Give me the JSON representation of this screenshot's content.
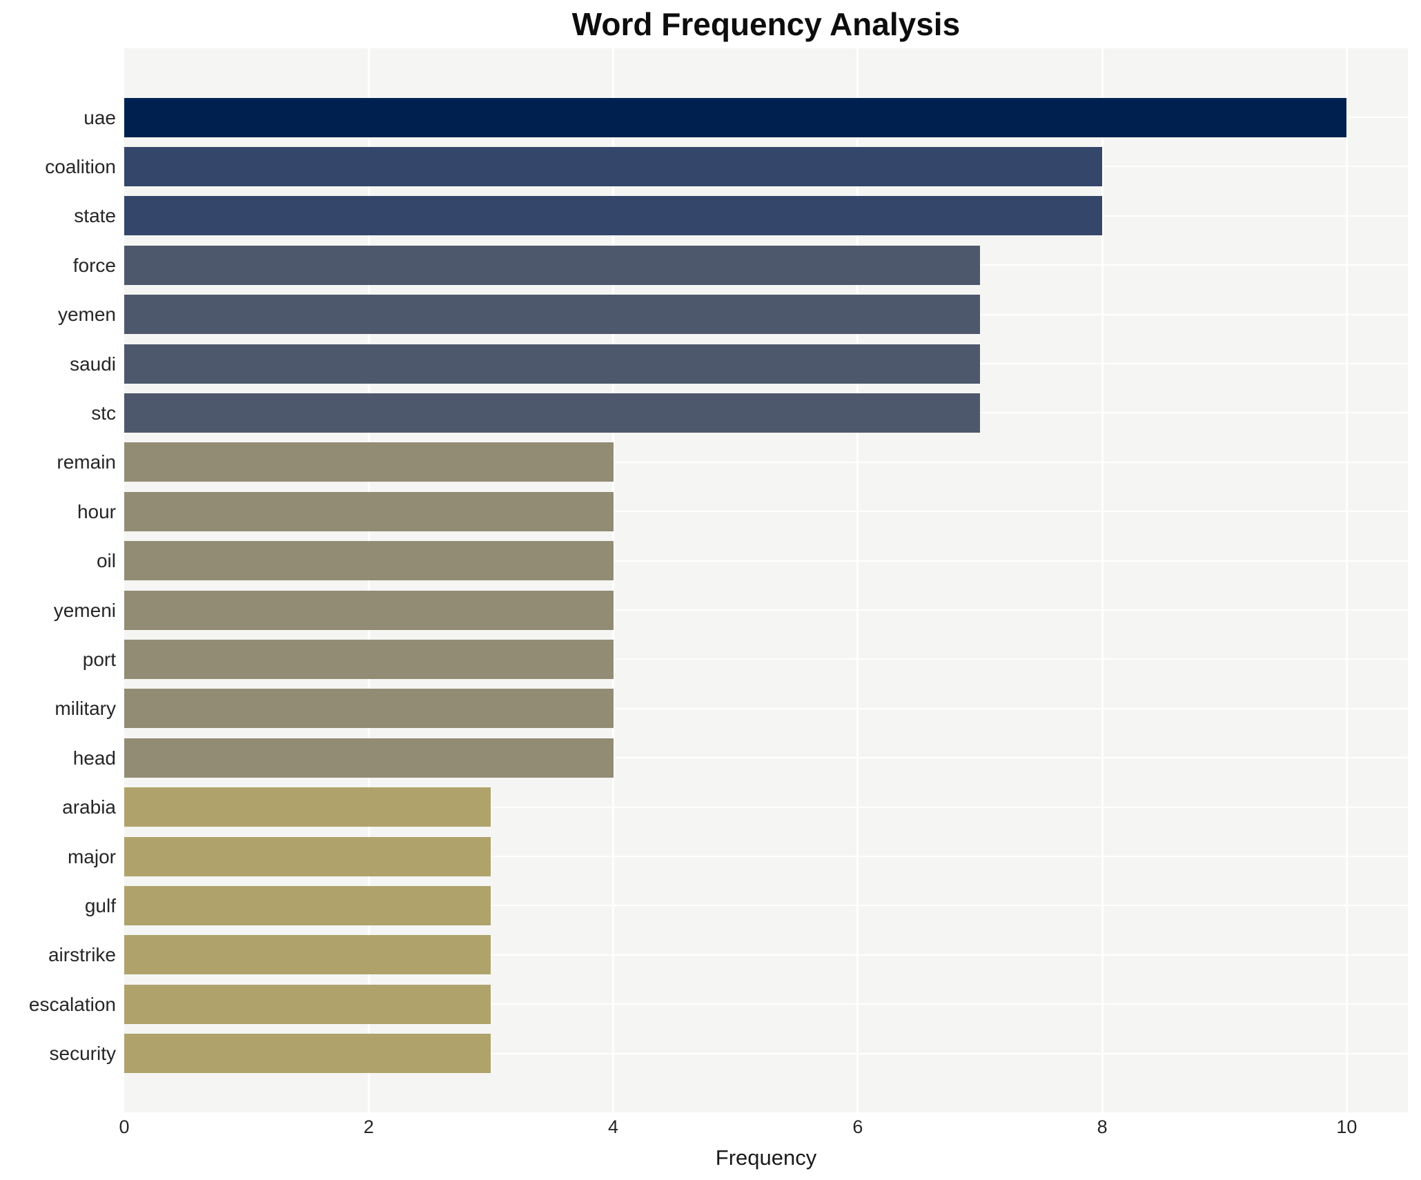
{
  "chart_data": {
    "type": "bar",
    "orientation": "horizontal",
    "title": "Word Frequency Analysis",
    "xlabel": "Frequency",
    "ylabel": "",
    "categories": [
      "uae",
      "coalition",
      "state",
      "force",
      "yemen",
      "saudi",
      "stc",
      "remain",
      "hour",
      "oil",
      "yemeni",
      "port",
      "military",
      "head",
      "arabia",
      "major",
      "gulf",
      "airstrike",
      "escalation",
      "security"
    ],
    "values": [
      10,
      8,
      8,
      7,
      7,
      7,
      7,
      4,
      4,
      4,
      4,
      4,
      4,
      4,
      3,
      3,
      3,
      3,
      3,
      3
    ],
    "x_ticks": [
      "0",
      "2",
      "4",
      "6",
      "8",
      "10"
    ],
    "x_tick_values": [
      0,
      2,
      4,
      6,
      8,
      10
    ],
    "xlim": [
      0,
      10.5
    ],
    "grid": true,
    "legend": false,
    "colors": {
      "plot_bg": "#f5f5f3",
      "grid": "#ffffff",
      "tick_text": "#262626",
      "title_text": "#0d0d0d",
      "bar_by_value": {
        "10": "#002150",
        "8": "#35466b",
        "7": "#4e586c",
        "4": "#928c75",
        "3": "#afa36b"
      }
    }
  }
}
